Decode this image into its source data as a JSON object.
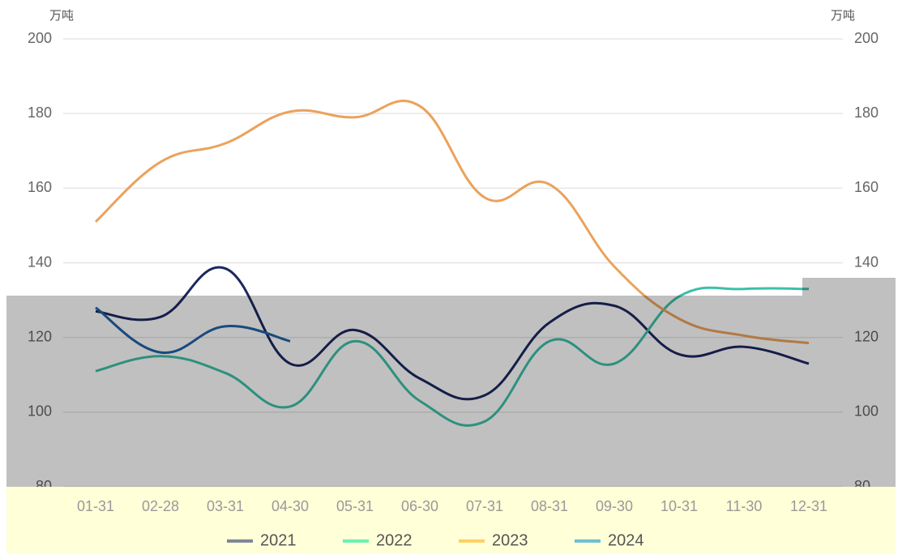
{
  "chart_data": {
    "type": "line",
    "ylabel": "万吨",
    "y2label": "万吨",
    "categories": [
      "01-31",
      "02-28",
      "03-31",
      "04-30",
      "05-31",
      "06-30",
      "07-31",
      "08-31",
      "09-30",
      "10-31",
      "11-30",
      "12-31"
    ],
    "series": [
      {
        "name": "2021",
        "color": "#808898",
        "line_color": "#1c2660",
        "values": [
          127,
          125.5,
          138.5,
          113,
          122,
          109,
          104.5,
          124,
          128.5,
          115.5,
          117.5,
          113
        ]
      },
      {
        "name": "2022",
        "color": "#6ef0b0",
        "line_color": "#3cc0a8",
        "values": [
          111,
          115,
          110.5,
          101.5,
          119,
          103,
          97.5,
          119,
          113,
          131,
          133,
          133
        ]
      },
      {
        "name": "2023",
        "color": "#ffd060",
        "line_color": "#eba25c",
        "values": [
          151,
          167,
          172,
          180.5,
          179,
          182,
          157.5,
          161,
          139,
          125,
          120.5,
          118.5
        ]
      },
      {
        "name": "2024",
        "color": "#70c0d0",
        "line_color": "#1f62a8",
        "values": [
          128,
          116,
          123,
          119,
          null,
          null,
          null,
          null,
          null,
          null,
          null,
          null
        ]
      }
    ],
    "ylim": [
      80,
      200
    ],
    "yticks": [
      80,
      100,
      120,
      140,
      160,
      180,
      200
    ],
    "y2lim": [
      80,
      200
    ],
    "y2ticks": [
      80,
      100,
      120,
      140,
      160,
      180,
      200
    ],
    "grid": true,
    "legend": "bottom"
  }
}
